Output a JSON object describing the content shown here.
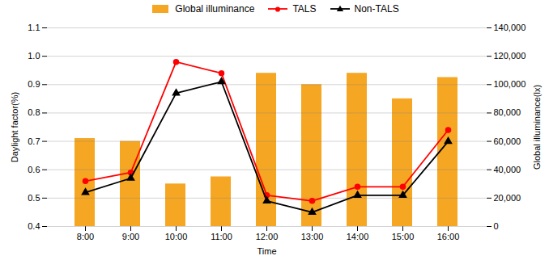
{
  "chart_data": {
    "type": "combo",
    "xlabel": "Time",
    "ylabel": "Daylight factor(%)",
    "y2label": "Global illuminance(lx)",
    "categories": [
      "8:00",
      "9:00",
      "10:00",
      "11:00",
      "12:00",
      "13:00",
      "14:00",
      "15:00",
      "16:00"
    ],
    "series": [
      {
        "name": "Global illuminance",
        "type": "bar",
        "axis": "y2",
        "color": "#F5A623",
        "values": [
          62000,
          60000,
          30000,
          35000,
          108000,
          100000,
          108000,
          90000,
          105000
        ]
      },
      {
        "name": "TALS",
        "type": "line",
        "color": "#FF0000",
        "marker": "circle",
        "values": [
          0.56,
          0.59,
          0.98,
          0.94,
          0.51,
          0.49,
          0.54,
          0.54,
          0.74
        ]
      },
      {
        "name": "Non-TALS",
        "type": "line",
        "color": "#000000",
        "marker": "triangle",
        "values": [
          0.52,
          0.57,
          0.87,
          0.91,
          0.49,
          0.45,
          0.51,
          0.51,
          0.7
        ]
      }
    ],
    "ylim": [
      0.4,
      1.1
    ],
    "yticks": [
      0.4,
      0.5,
      0.6,
      0.7,
      0.8,
      0.9,
      {
        "value": 1.0,
        "label": "1.0"
      },
      1.1
    ],
    "y2lim": [
      0,
      140000
    ],
    "y2ticks": [
      0,
      {
        "value": 20000,
        "label": "20,000"
      },
      {
        "value": 40000,
        "label": "40,000"
      },
      {
        "value": 60000,
        "label": "60,000"
      },
      {
        "value": 80000,
        "label": "80,000"
      },
      {
        "value": 100000,
        "label": "100,000"
      },
      {
        "value": 120000,
        "label": "120,000"
      },
      {
        "value": 140000,
        "label": "140,000"
      }
    ],
    "grid": true,
    "legend": "top"
  }
}
